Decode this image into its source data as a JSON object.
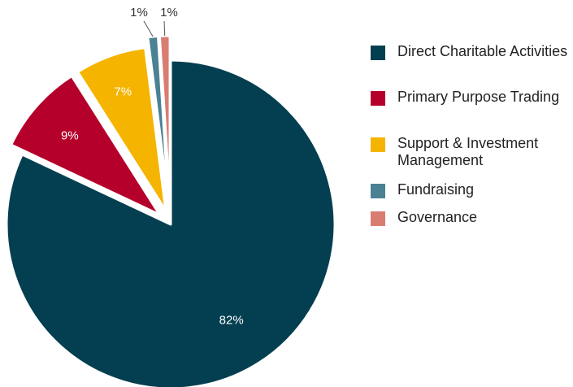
{
  "chart_data": {
    "type": "pie",
    "slices": [
      {
        "label": "Direct Charitable Activities",
        "value": 82,
        "display": "82%",
        "color": "#033f50"
      },
      {
        "label": "Primary Purpose Trading",
        "value": 9,
        "display": "9%",
        "color": "#b5002b"
      },
      {
        "label": "Support & Investment Management",
        "value": 7,
        "display": "7%",
        "color": "#f5b400"
      },
      {
        "label": "Fundraising",
        "value": 1,
        "display": "1%",
        "color": "#4a8193"
      },
      {
        "label": "Governance",
        "value": 1,
        "display": "1%",
        "color": "#d97d71"
      }
    ],
    "legend_position": "right",
    "start_angle": "12 o'clock, clockwise"
  },
  "legend": {
    "items": [
      {
        "label": "Direct Charitable Activities",
        "color": "#033f50"
      },
      {
        "label": "Primary Purpose Trading",
        "color": "#b5002b"
      },
      {
        "label": "Support & Investment Management",
        "color": "#f5b400"
      },
      {
        "label": "Fundraising",
        "color": "#4a8193"
      },
      {
        "label": "Governance",
        "color": "#d97d71"
      }
    ]
  }
}
